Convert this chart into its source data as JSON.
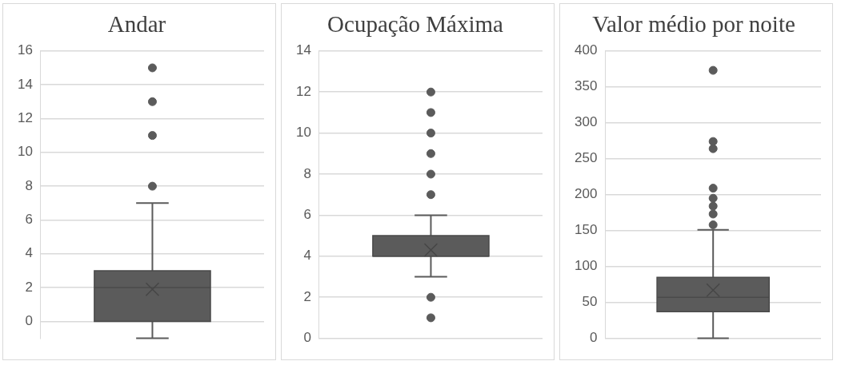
{
  "chart_data": [
    {
      "type": "box",
      "title": "Andar",
      "categories": [
        null
      ],
      "ylim": [
        -1,
        16
      ],
      "yticks": [
        0,
        2,
        4,
        6,
        8,
        10,
        12,
        14,
        16
      ],
      "grid": "y",
      "series": [
        {
          "color": "#5b5b5b",
          "boxes": [
            {
              "low": -1,
              "q1": 0,
              "median": 2,
              "q3": 3,
              "high": 7,
              "mean": 1.9,
              "outliers": [
                8,
                11,
                13,
                15
              ]
            }
          ]
        }
      ]
    },
    {
      "type": "box",
      "title": "Ocupação Máxima",
      "categories": [
        null
      ],
      "ylim": [
        0,
        14
      ],
      "yticks": [
        0,
        2,
        4,
        6,
        8,
        10,
        12,
        14
      ],
      "grid": "y",
      "series": [
        {
          "color": "#5b5b5b",
          "boxes": [
            {
              "low": 3,
              "q1": 4,
              "median": 4,
              "q3": 5,
              "high": 6,
              "mean": 4.3,
              "outliers": [
                1,
                2,
                7,
                8,
                9,
                10,
                11,
                12
              ]
            }
          ]
        }
      ]
    },
    {
      "type": "box",
      "title": "Valor médio por noite",
      "categories": [
        null
      ],
      "ylim": [
        0,
        400
      ],
      "yticks": [
        0,
        50,
        100,
        150,
        200,
        250,
        300,
        350,
        400
      ],
      "grid": "y",
      "series": [
        {
          "color": "#5b5b5b",
          "boxes": [
            {
              "low": 0,
              "q1": 37,
              "median": 57,
              "q3": 85,
              "high": 151,
              "mean": 67,
              "outliers": [
                158,
                173,
                184,
                195,
                209,
                264,
                274,
                373
              ]
            }
          ]
        }
      ]
    }
  ]
}
